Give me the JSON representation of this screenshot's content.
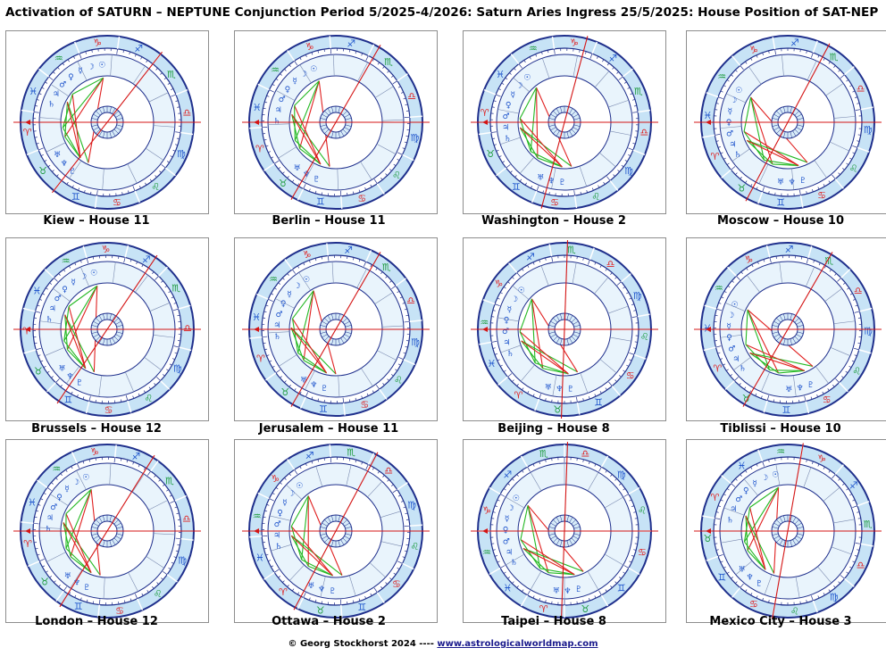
{
  "title": "Activation of SATURN – NEPTUNE Conjunction Period 5/2025-4/2026: Saturn Aries Ingress 25/5/2025: House Position of SAT-NEP",
  "charts": [
    {
      "caption": "Kiew – House 11"
    },
    {
      "caption": "Berlin – House 11"
    },
    {
      "caption": "Washington – House 2"
    },
    {
      "caption": "Moscow – House 10"
    },
    {
      "caption": "Brussels – House 12"
    },
    {
      "caption": "Jerusalem – House 11"
    },
    {
      "caption": "Beijing – House 8"
    },
    {
      "caption": "Tiblissi – House 10"
    },
    {
      "caption": "London – House 12"
    },
    {
      "caption": "Ottawa – House 2"
    },
    {
      "caption": "Taipei – House 8"
    },
    {
      "caption": "Mexico City – House 3"
    }
  ],
  "footer": {
    "author": "©  Georg Stockhorst 2024  ----",
    "link": "www.astrologicalworldmap.com"
  },
  "colors": {
    "ring_outer": "#c7e3f6",
    "ring_inner": "#e9f4fc",
    "ring_stroke": "#1f2f8c",
    "axis": "#d41414",
    "aspect_red": "#e02020",
    "aspect_green": "#22b822",
    "sign_red": "#e02020",
    "sign_green": "#1a9a3a",
    "sign_blue": "#1f55cc",
    "planet": "#1f55cc"
  },
  "zodiac_glyphs": [
    "♈",
    "♉",
    "♊",
    "♋",
    "♌",
    "♍",
    "♎",
    "♏",
    "♐",
    "♑",
    "♒",
    "♓"
  ],
  "planet_glyphs": [
    "☉",
    "☽",
    "☿",
    "♀",
    "♂",
    "♃",
    "♄",
    "♅",
    "♆",
    "♇"
  ]
}
